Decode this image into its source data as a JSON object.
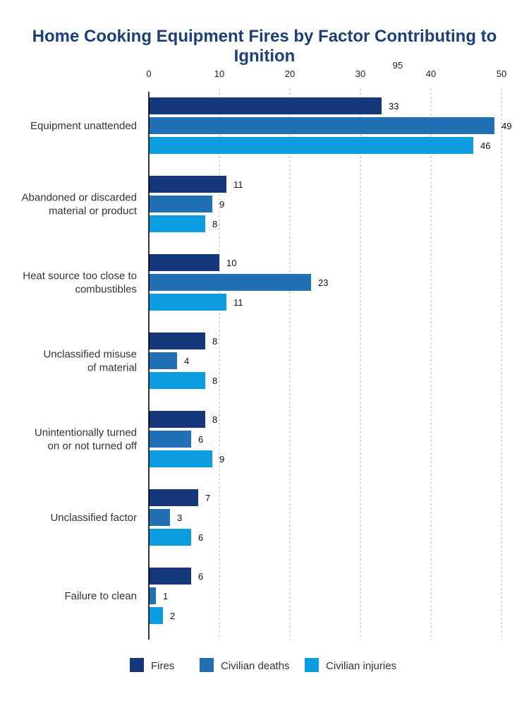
{
  "chart_data": {
    "type": "bar",
    "orientation": "horizontal",
    "title": "Home Cooking Equipment Fires by Factor Contributing to Ignition",
    "xlim": [
      0,
      50
    ],
    "ticks": [
      0,
      10,
      20,
      30,
      40,
      50
    ],
    "extra_axis_text": "95",
    "grid": true,
    "legend_position": "bottom",
    "categories": [
      [
        "Equipment unattended"
      ],
      [
        "Abandoned or discarded",
        "material or product"
      ],
      [
        "Heat source too close to",
        "combustibles"
      ],
      [
        "Unclassified misuse",
        "of material"
      ],
      [
        "Unintentionally turned",
        "on or not turned off"
      ],
      [
        "Unclassified factor"
      ],
      [
        "Failure to clean"
      ]
    ],
    "series": [
      {
        "name": "Fires",
        "color": "#15387a",
        "values": [
          33,
          11,
          10,
          8,
          8,
          7,
          6
        ]
      },
      {
        "name": "Civilian deaths",
        "color": "#2270b4",
        "values": [
          49,
          9,
          23,
          4,
          6,
          3,
          1
        ]
      },
      {
        "name": "Civilian injuries",
        "color": "#0b9de0",
        "values": [
          46,
          8,
          11,
          8,
          9,
          6,
          2
        ]
      }
    ]
  }
}
